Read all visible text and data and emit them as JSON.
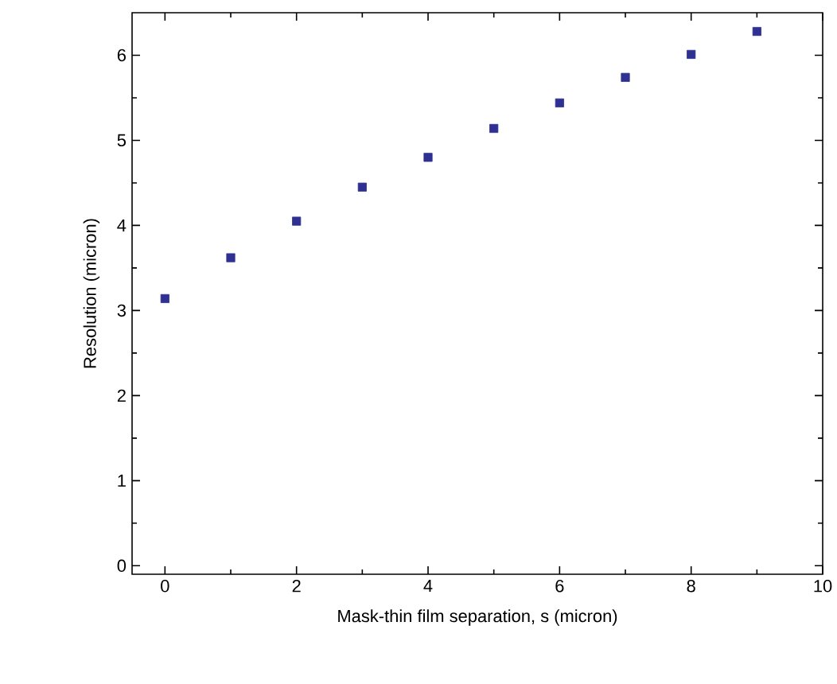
{
  "chart_data": {
    "type": "scatter",
    "xlabel": "Mask-thin film separation, s (micron)",
    "ylabel": "Resolution (micron)",
    "x": [
      0,
      1,
      2,
      3,
      4,
      5,
      6,
      7,
      8,
      9
    ],
    "series": [
      {
        "color": "#2e3192",
        "values": [
          3.14,
          3.62,
          4.05,
          4.45,
          4.8,
          5.14,
          5.44,
          5.74,
          6.01,
          6.28
        ]
      }
    ],
    "xlim": [
      -0.5,
      10
    ],
    "ylim": [
      -0.1,
      6.5
    ],
    "xticks": [
      0,
      2,
      4,
      6,
      8,
      10
    ],
    "yticks": [
      0,
      1,
      2,
      3,
      4,
      5,
      6
    ],
    "marker": "square",
    "grid": false
  }
}
